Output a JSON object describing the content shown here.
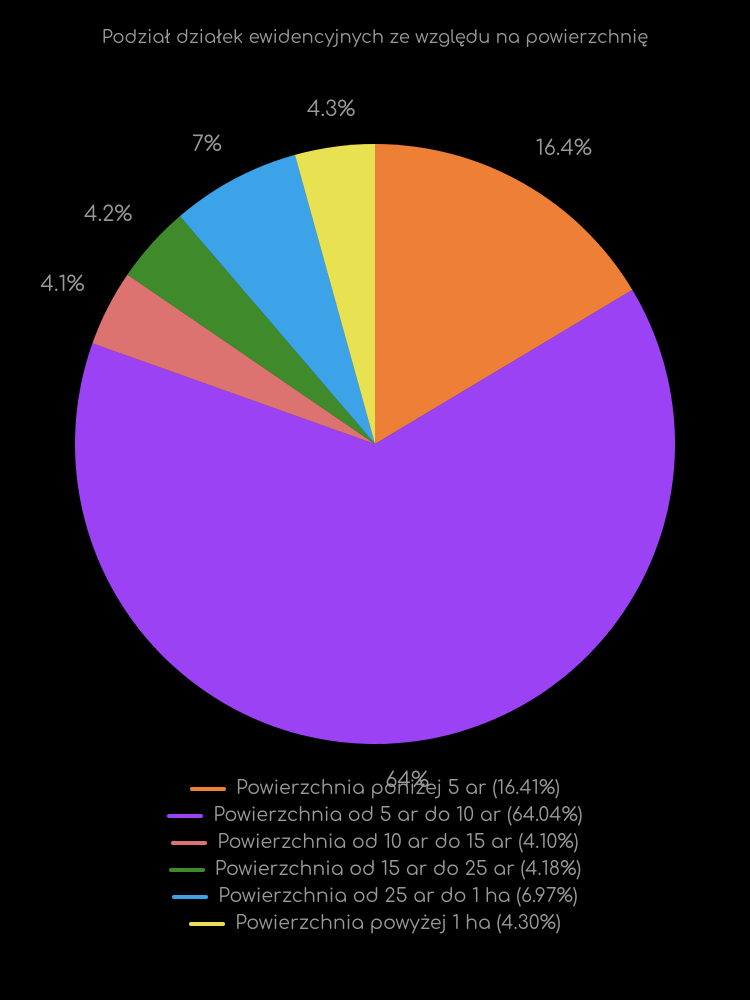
{
  "chart": {
    "type": "pie",
    "title": "Podział działek ewidencyjnych ze względu na powierzchnię",
    "title_color": "#999999",
    "title_fontsize": 18,
    "background_color": "#000000",
    "label_color": "#999999",
    "label_fontsize": 21,
    "legend_fontsize": 19,
    "pie_radius": 300,
    "start_angle_deg": -90,
    "slices": [
      {
        "name": "s0",
        "value": 16.41,
        "short_label": "16.4%",
        "color": "#ed8036",
        "legend": "Powierzchnia poniżej 5 ar (16.41%)"
      },
      {
        "name": "s1",
        "value": 64.04,
        "short_label": "64%",
        "color": "#9b42f4",
        "legend": "Powierzchnia od 5 ar do 10 ar (64.04%)"
      },
      {
        "name": "s2",
        "value": 4.1,
        "short_label": "4.1%",
        "color": "#dd7371",
        "legend": "Powierzchnia od 10 ar do 15 ar (4.10%)"
      },
      {
        "name": "s3",
        "value": 4.18,
        "short_label": "4.2%",
        "color": "#3f8b2c",
        "legend": "Powierzchnia od 15 ar do 25 ar (4.18%)"
      },
      {
        "name": "s4",
        "value": 6.97,
        "short_label": "7%",
        "color": "#3ca3e8",
        "legend": "Powierzchnia od 25 ar do 1 ha (6.97%)"
      },
      {
        "name": "s5",
        "value": 4.3,
        "short_label": "4.3%",
        "color": "#e8e151",
        "legend": "Powierzchnia powyżej 1 ha (4.30%)"
      }
    ]
  }
}
